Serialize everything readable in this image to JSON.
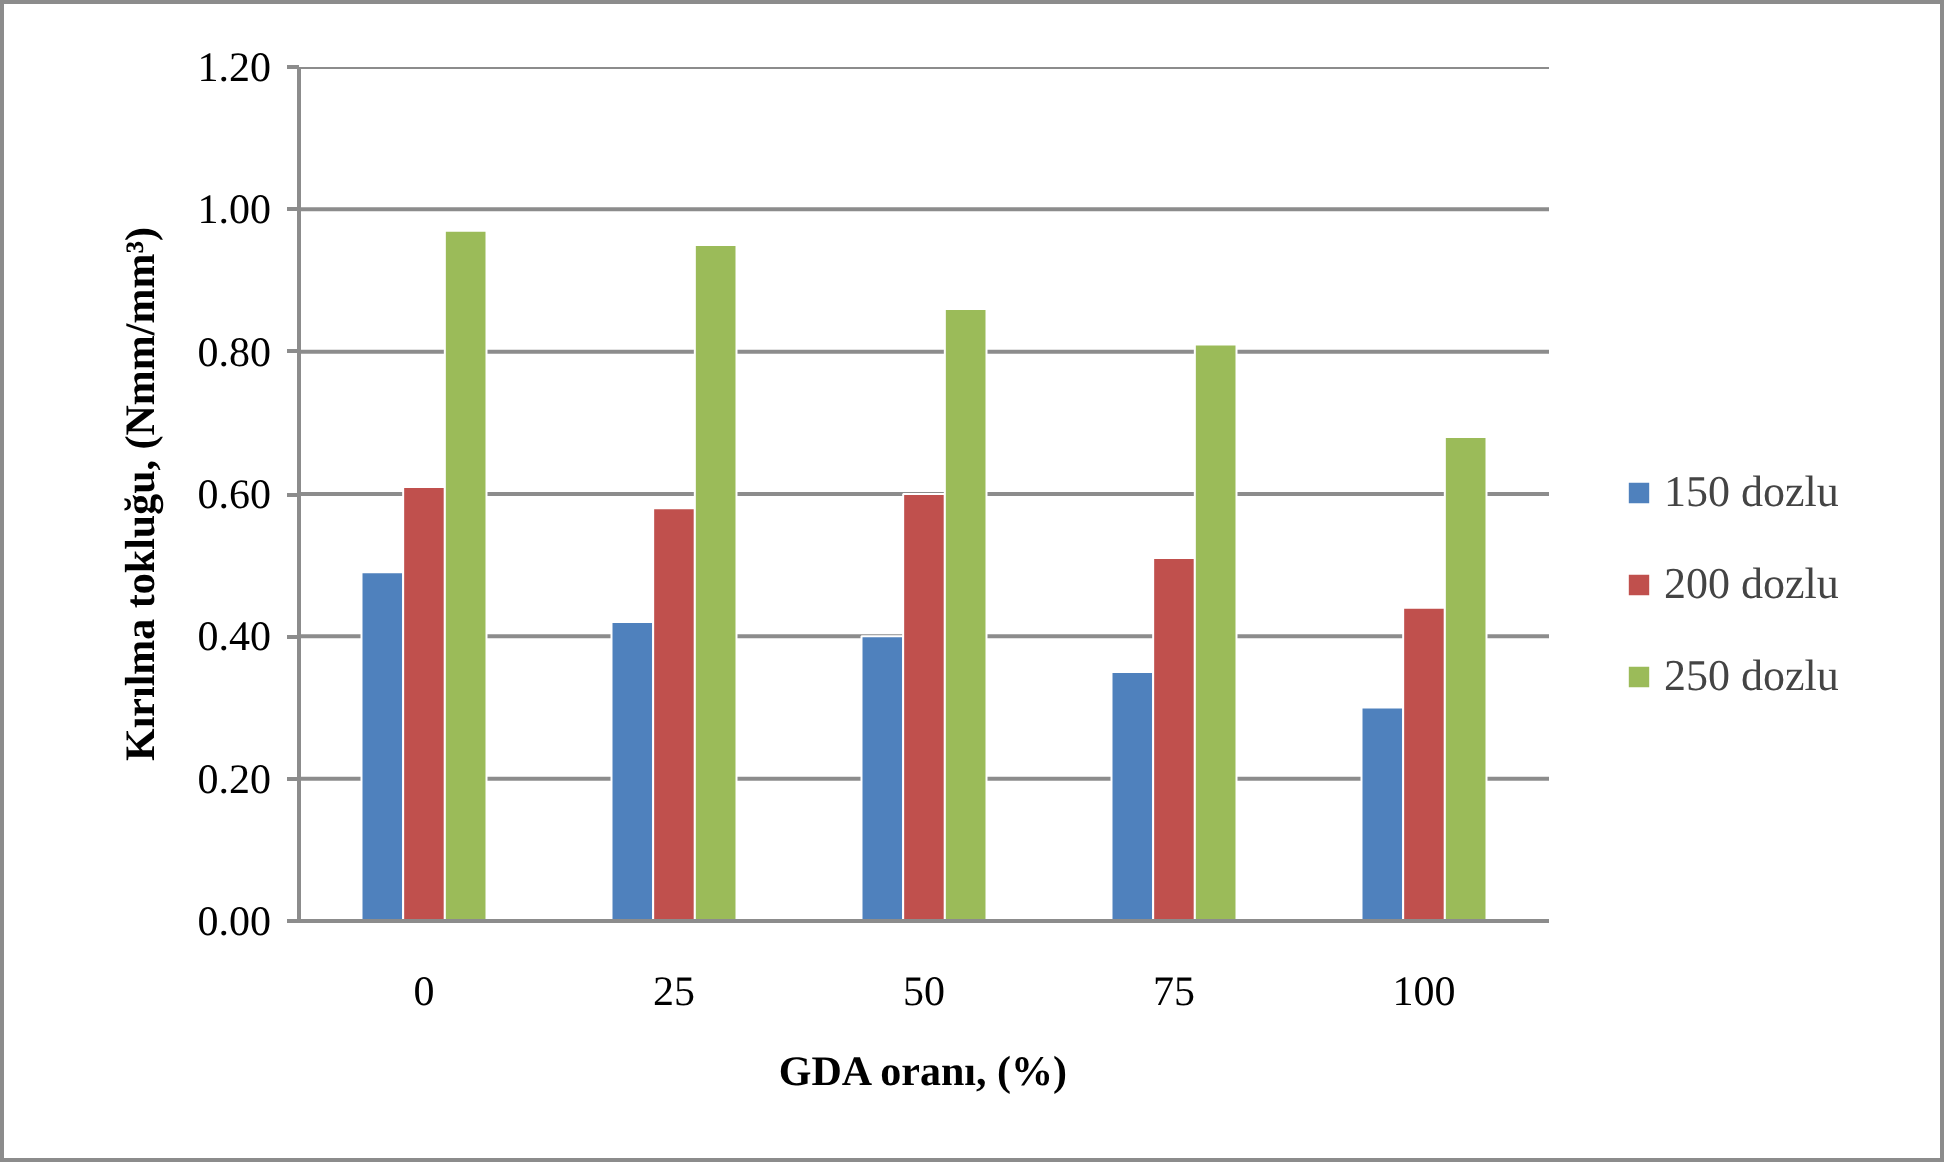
{
  "chart_data": {
    "type": "bar",
    "xlabel": "GDA oranı, (%)",
    "ylabel": "Kırılma tokluğu, (Nmm/mm³)",
    "categories": [
      "0",
      "25",
      "50",
      "75",
      "100"
    ],
    "series": [
      {
        "name": "150 dozlu",
        "color": "#4f81bd",
        "values": [
          0.49,
          0.42,
          0.4,
          0.35,
          0.3
        ]
      },
      {
        "name": "200 dozlu",
        "color": "#c0504d",
        "values": [
          0.61,
          0.58,
          0.6,
          0.51,
          0.44
        ]
      },
      {
        "name": "250 dozlu",
        "color": "#9bbb59",
        "values": [
          0.97,
          0.95,
          0.86,
          0.81,
          0.68
        ]
      }
    ],
    "ylim": [
      0,
      1.2
    ],
    "yticks": [
      {
        "value": 0,
        "label": "0.00"
      },
      {
        "value": 0.2,
        "label": "0.20"
      },
      {
        "value": 0.4,
        "label": "0.40"
      },
      {
        "value": 0.6,
        "label": "0.60"
      },
      {
        "value": 0.8,
        "label": "0.80"
      },
      {
        "value": 1.0,
        "label": "1.00"
      },
      {
        "value": 1.2,
        "label": "1.20"
      }
    ],
    "grid": "y",
    "legend": "right"
  }
}
